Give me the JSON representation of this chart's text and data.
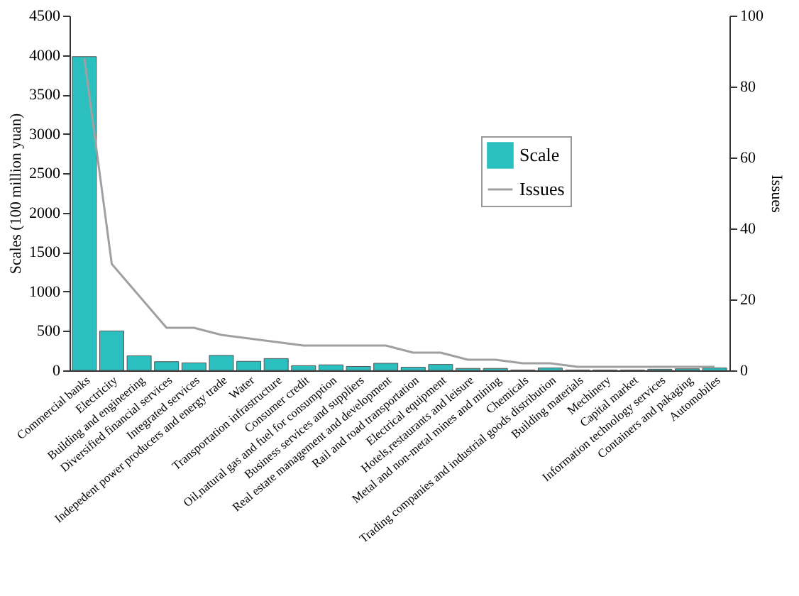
{
  "chart_data": {
    "type": "bar",
    "categories": [
      "Commercial banks",
      "Electricity",
      "Building and engineering",
      "Diversified financial services",
      "Integrated services",
      "Indepedent power producers and energy trade",
      "Water",
      "Transportation infrastructure",
      "Consumer credit",
      "Oil,natural gas and fuel for consumption",
      "Business services and suppliers",
      "Real estate management and development",
      "Rail and road transportation",
      "Electrical equipment",
      "Hotels,restaurants and leisure",
      "Metal and non-metal mines and mining",
      "Chemicals",
      "Trading companies and industrial goods distribution",
      "Building materials",
      "Mechinery",
      "Capital market",
      "Information technology services",
      "Containers and pakaging",
      "Automobiles"
    ],
    "series": [
      {
        "name": "Scale",
        "color": "#2bbfbf",
        "values": [
          3980,
          500,
          185,
          110,
          95,
          190,
          115,
          150,
          60,
          70,
          50,
          90,
          40,
          75,
          25,
          25,
          5,
          30,
          5,
          5,
          5,
          15,
          20,
          30
        ]
      },
      {
        "name": "Issues",
        "type": "line",
        "axis": "y2",
        "color": "#a0a0a0",
        "values": [
          88,
          30,
          21,
          12,
          12,
          10,
          9,
          8,
          7,
          7,
          7,
          7,
          5,
          5,
          3,
          3,
          2,
          2,
          1,
          1,
          1,
          1,
          1,
          1
        ]
      }
    ],
    "ylabel": "Scales (100 million yuan)",
    "y2label": "Issues",
    "ylim": [
      0,
      4500
    ],
    "yticks": [
      0,
      500,
      1000,
      1500,
      2000,
      2500,
      3000,
      3500,
      4000,
      4500
    ],
    "y2lim": [
      0,
      100
    ],
    "y2ticks": [
      0,
      20,
      40,
      60,
      80,
      100
    ],
    "legend": "top right",
    "grid": false
  }
}
